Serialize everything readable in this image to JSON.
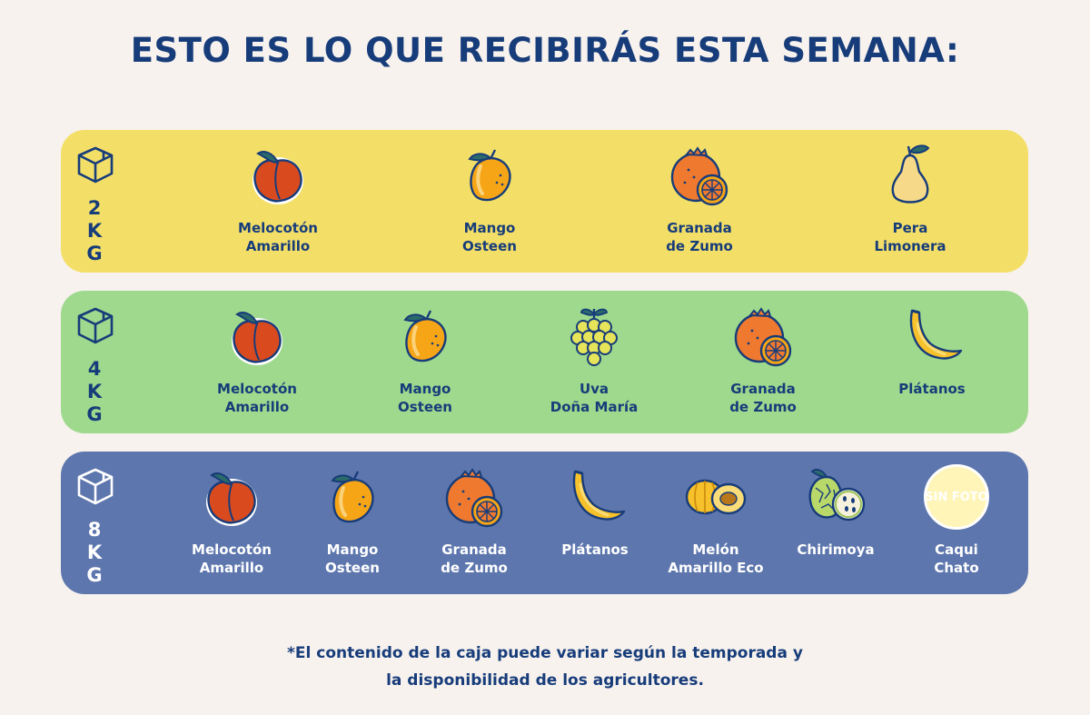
{
  "title": "ESTO ES LO QUE RECIBIRÁS ESTA SEMANA:",
  "colors": {
    "background": "#f7f2ee",
    "band_2kg": "#f3df68",
    "band_4kg": "#9fd98d",
    "band_8kg": "#5d76ad",
    "text_primary": "#173c7a"
  },
  "boxes": [
    {
      "weight": [
        "2",
        "K",
        "G"
      ],
      "icon": "box-icon",
      "fruits": [
        {
          "name": "Melocotón\nAmarillo",
          "icon": "peach-icon"
        },
        {
          "name": "Mango\nOsteen",
          "icon": "mango-icon"
        },
        {
          "name": "Granada\nde Zumo",
          "icon": "orange-icon"
        },
        {
          "name": "Pera\nLimonera",
          "icon": "pear-icon"
        }
      ]
    },
    {
      "weight": [
        "4",
        "K",
        "G"
      ],
      "icon": "box-icon",
      "fruits": [
        {
          "name": "Melocotón\nAmarillo",
          "icon": "peach-icon"
        },
        {
          "name": "Mango\nOsteen",
          "icon": "mango-icon"
        },
        {
          "name": "Uva\nDoña María",
          "icon": "grapes-icon"
        },
        {
          "name": "Granada\nde Zumo",
          "icon": "orange-icon"
        },
        {
          "name": "Plátanos",
          "icon": "banana-icon"
        }
      ]
    },
    {
      "weight": [
        "8",
        "K",
        "G"
      ],
      "icon": "box-icon",
      "fruits": [
        {
          "name": "Melocotón\nAmarillo",
          "icon": "peach-icon"
        },
        {
          "name": "Mango\nOsteen",
          "icon": "mango-icon"
        },
        {
          "name": "Granada\nde Zumo",
          "icon": "orange-icon"
        },
        {
          "name": "Plátanos",
          "icon": "banana-icon"
        },
        {
          "name": "Melón\nAmarillo Eco",
          "icon": "melon-icon"
        },
        {
          "name": "Chirimoya",
          "icon": "cherimoya-icon"
        },
        {
          "name": "Caqui\nChato",
          "icon": "no-photo-placeholder",
          "placeholder": "SIN FOTO"
        }
      ]
    }
  ],
  "footnote": {
    "line1": "*El contenido de la caja puede variar según la temporada y",
    "line2": "la disponibilidad de los agricultores."
  }
}
